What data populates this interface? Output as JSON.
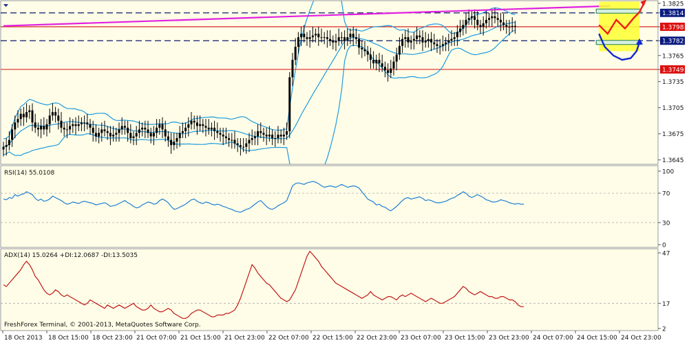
{
  "colors": {
    "background": "#fffde7",
    "band": "#1e9be0",
    "candle": "#000000",
    "trend_magenta": "#e020e0",
    "level_red": "#d01010",
    "level_navy": "#0a1a70",
    "rsi_line": "#1e7fd6",
    "adx_line": "#c01818",
    "forecast_fill": "#ffff33",
    "forecast_up": "#ee1c1c",
    "forecast_down": "#1428d0",
    "tag_red": "#dd1111",
    "tag_navy": "#0a1a80",
    "tag_green": "#1e7a50"
  },
  "footer": "FreshForex Terminal, © 2001-2013, MetaQuotes Software Corp.",
  "chart_data": [
    {
      "type": "candlestick",
      "panel": "price",
      "y_ticks": [
        "1.3825",
        "1.3814",
        "1.3798",
        "1.3782",
        "1.3765",
        "1.3749",
        "1.3735",
        "1.3705",
        "1.3675",
        "1.3645"
      ],
      "ylim": [
        1.364,
        1.3828
      ],
      "levels": [
        {
          "value": 1.3814,
          "label": "1.3814",
          "style": "dash",
          "tag": "navy"
        },
        {
          "value": 1.3798,
          "label": "1.3798",
          "style": "solid-red",
          "tag": "red"
        },
        {
          "value": 1.3782,
          "label": "1.3782",
          "style": "dash",
          "tag": "navy"
        },
        {
          "value": 1.3749,
          "label": "1.3749",
          "style": "solid-red",
          "tag": "red"
        }
      ],
      "trendline": {
        "from": [
          0,
          1.3799
        ],
        "to": [
          210,
          1.3822
        ]
      },
      "closes": [
        1.366,
        1.3662,
        1.3668,
        1.368,
        1.3688,
        1.3692,
        1.3698,
        1.3694,
        1.37,
        1.3702,
        1.3688,
        1.3682,
        1.368,
        1.3684,
        1.368,
        1.3686,
        1.3696,
        1.37,
        1.3696,
        1.369,
        1.3682,
        1.368,
        1.368,
        1.3684,
        1.3686,
        1.3684,
        1.3686,
        1.3688,
        1.3688,
        1.3686,
        1.3682,
        1.3676,
        1.3672,
        1.3676,
        1.368,
        1.3678,
        1.3676,
        1.3672,
        1.3674,
        1.3676,
        1.368,
        1.3684,
        1.3682,
        1.3676,
        1.367,
        1.3672,
        1.3676,
        1.368,
        1.3682,
        1.368,
        1.3676,
        1.3672,
        1.3676,
        1.3682,
        1.3686,
        1.368,
        1.3672,
        1.3668,
        1.3662,
        1.3666,
        1.367,
        1.3676,
        1.3678,
        1.3682,
        1.3686,
        1.369,
        1.3688,
        1.3684,
        1.3686,
        1.3684,
        1.3682,
        1.368,
        1.3682,
        1.3678,
        1.3676,
        1.3674,
        1.3672,
        1.367,
        1.3668,
        1.3668,
        1.3664,
        1.3662,
        1.366,
        1.366,
        1.3664,
        1.3668,
        1.367,
        1.3672,
        1.3678,
        1.3676,
        1.3674,
        1.3672,
        1.3674,
        1.367,
        1.367,
        1.3674,
        1.3672,
        1.3674,
        1.3678,
        1.374,
        1.376,
        1.3775,
        1.3786,
        1.379,
        1.3786,
        1.3784,
        1.3786,
        1.3788,
        1.379,
        1.3786,
        1.3786,
        1.3786,
        1.3784,
        1.3782,
        1.378,
        1.3782,
        1.3786,
        1.3786,
        1.3782,
        1.3786,
        1.379,
        1.3786,
        1.3784,
        1.3774,
        1.3772,
        1.377,
        1.3766,
        1.376,
        1.3756,
        1.376,
        1.3756,
        1.3752,
        1.3748,
        1.3745,
        1.375,
        1.3758,
        1.3766,
        1.3776,
        1.3784,
        1.3786,
        1.378,
        1.3782,
        1.3784,
        1.3788,
        1.3786,
        1.378,
        1.3782,
        1.3784,
        1.378,
        1.3778,
        1.3776,
        1.3776,
        1.3778,
        1.378,
        1.3782,
        1.3784,
        1.3786,
        1.3792,
        1.3796,
        1.38,
        1.3806,
        1.3808,
        1.381,
        1.3806,
        1.38,
        1.3798,
        1.3802,
        1.3806,
        1.3808,
        1.381,
        1.3808,
        1.3806,
        1.3803,
        1.38,
        1.3798,
        1.3798,
        1.3799,
        1.3798
      ],
      "forecast_box": {
        "x0": 206,
        "x1": 220,
        "y0": 1.3827,
        "y1": 1.377
      },
      "forecast_up": [
        [
          206,
          1.38
        ],
        [
          209,
          1.379
        ],
        [
          212,
          1.3806
        ],
        [
          215,
          1.3796
        ],
        [
          218,
          1.3808
        ],
        [
          220,
          1.3815
        ],
        [
          222,
          1.3828
        ]
      ],
      "forecast_down": [
        [
          206,
          1.379
        ],
        [
          208,
          1.3775
        ],
        [
          211,
          1.3765
        ],
        [
          214,
          1.376
        ],
        [
          217,
          1.3762
        ],
        [
          219,
          1.377
        ],
        [
          220,
          1.378
        ]
      ]
    },
    {
      "type": "line",
      "panel": "rsi",
      "label": "RSI(14) 55.0108",
      "ylim": [
        0,
        100
      ],
      "y_ticks": [
        "100",
        "70",
        "30",
        "0"
      ],
      "reference_lines": [
        70,
        30
      ],
      "series": [
        {
          "name": "RSI",
          "values": [
            62,
            61,
            64,
            63,
            68,
            66,
            68,
            69,
            72,
            70,
            68,
            63,
            60,
            62,
            59,
            60,
            62,
            66,
            64,
            62,
            60,
            57,
            55,
            56,
            58,
            57,
            56,
            58,
            59,
            58,
            57,
            56,
            54,
            55,
            56,
            57,
            55,
            52,
            53,
            54,
            56,
            58,
            60,
            57,
            55,
            52,
            50,
            51,
            54,
            56,
            58,
            57,
            55,
            56,
            60,
            62,
            60,
            57,
            52,
            48,
            49,
            51,
            53,
            55,
            58,
            61,
            62,
            59,
            57,
            56,
            58,
            57,
            55,
            54,
            55,
            54,
            52,
            51,
            49,
            48,
            46,
            45,
            44,
            46,
            48,
            49,
            52,
            55,
            58,
            60,
            56,
            52,
            49,
            48,
            50,
            53,
            55,
            57,
            60,
            70,
            80,
            83,
            84,
            83,
            82,
            84,
            85,
            86,
            85,
            83,
            80,
            78,
            79,
            80,
            79,
            78,
            80,
            82,
            80,
            78,
            79,
            80,
            79,
            77,
            72,
            67,
            62,
            60,
            58,
            54,
            55,
            52,
            51,
            48,
            46,
            49,
            52,
            56,
            60,
            63,
            64,
            62,
            63,
            64,
            65,
            63,
            60,
            61,
            60,
            58,
            57,
            57,
            58,
            59,
            61,
            63,
            64,
            67,
            69,
            72,
            70,
            66,
            64,
            66,
            68,
            66,
            64,
            61,
            60,
            58,
            58,
            59,
            61,
            60,
            59,
            57,
            56,
            55,
            56,
            55,
            55
          ]
        }
      ]
    },
    {
      "type": "line",
      "panel": "adx",
      "label": "ADX(14) 15.0264 +DI:12.0687 -DI:13.5035",
      "ylim": [
        2,
        47
      ],
      "y_ticks": [
        "47",
        "17",
        "2"
      ],
      "reference_lines": [
        17
      ],
      "series": [
        {
          "name": "ADX",
          "values": [
            28,
            27,
            29,
            31,
            33,
            35,
            37,
            40,
            42,
            40,
            37,
            33,
            31,
            28,
            25,
            23,
            22,
            23,
            25,
            24,
            22,
            21,
            22,
            21,
            20,
            19,
            18,
            17,
            16,
            17,
            19,
            18,
            17,
            16,
            15,
            14,
            16,
            15,
            14,
            15,
            16,
            15,
            14,
            15,
            16,
            17,
            15,
            14,
            13,
            13,
            14,
            16,
            14,
            13,
            12,
            12,
            13,
            14,
            13,
            11,
            10,
            9,
            8,
            8,
            9,
            11,
            12,
            13,
            13,
            12,
            11,
            10,
            9,
            9,
            10,
            10,
            10,
            11,
            11,
            12,
            13,
            16,
            20,
            25,
            30,
            35,
            40,
            38,
            35,
            33,
            31,
            29,
            28,
            26,
            24,
            22,
            20,
            19,
            18,
            19,
            22,
            25,
            30,
            35,
            40,
            45,
            48,
            46,
            44,
            42,
            39,
            37,
            35,
            33,
            31,
            29,
            28,
            27,
            26,
            25,
            24,
            23,
            22,
            21,
            20,
            21,
            22,
            24,
            22,
            21,
            20,
            19,
            20,
            21,
            21,
            20,
            19,
            21,
            22,
            21,
            22,
            23,
            22,
            21,
            20,
            19,
            18,
            19,
            20,
            19,
            18,
            17,
            17,
            18,
            19,
            20,
            21,
            23,
            25,
            27,
            26,
            24,
            23,
            22,
            23,
            24,
            23,
            22,
            21,
            21,
            20,
            20,
            21,
            21,
            20,
            19,
            19,
            18,
            16,
            15,
            15
          ]
        }
      ]
    }
  ],
  "x_axis": {
    "labels": [
      "18 Oct 2013",
      "18 Oct 15:00",
      "18 Oct 23:00",
      "21 Oct 07:00",
      "21 Oct 15:00",
      "21 Oct 23:00",
      "22 Oct 07:00",
      "22 Oct 15:00",
      "22 Oct 23:00",
      "23 Oct 07:00",
      "23 Oct 15:00",
      "23 Oct 23:00",
      "24 Oct 07:00",
      "24 Oct 15:00",
      "24 Oct 23:00"
    ]
  }
}
